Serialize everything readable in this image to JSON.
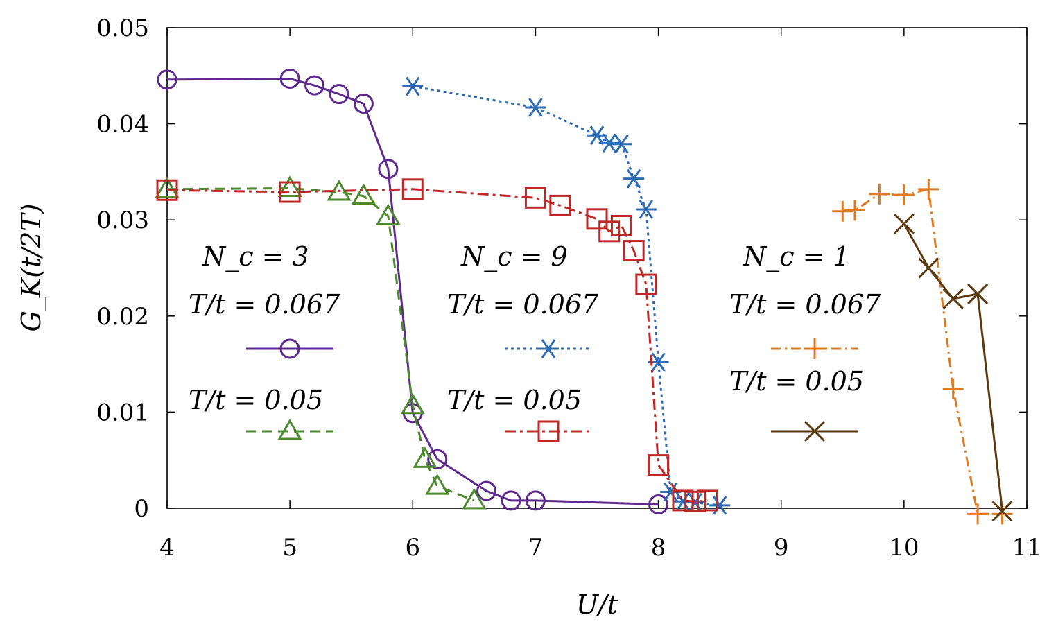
{
  "chart_data": {
    "type": "line",
    "title": "",
    "xlabel": "U/t",
    "ylabel": "G_K(t/2T)",
    "xlim": [
      4,
      11
    ],
    "ylim": [
      0,
      0.05
    ],
    "xticks": [
      4,
      5,
      6,
      7,
      8,
      9,
      10,
      11
    ],
    "yticks": [
      0,
      0.01,
      0.02,
      0.03,
      0.04,
      0.05
    ],
    "ytick_labels": [
      "0",
      "0.01",
      "0.02",
      "0.03",
      "0.04",
      "0.05"
    ],
    "legend_groups": [
      {
        "label": "N_c = 3",
        "entries": [
          {
            "label": "T/t = 0.067",
            "series": 0
          },
          {
            "label": "T/t = 0.05",
            "series": 1
          }
        ]
      },
      {
        "label": "N_c = 9",
        "entries": [
          {
            "label": "T/t = 0.067",
            "series": 2
          },
          {
            "label": "T/t = 0.05",
            "series": 3
          }
        ]
      },
      {
        "label": "N_c = 1",
        "entries": [
          {
            "label": "T/t = 0.067",
            "series": 4
          },
          {
            "label": "T/t = 0.05",
            "series": 5
          }
        ]
      }
    ],
    "series": [
      {
        "name": "Nc=3, T/t=0.067",
        "color": "#5e2a8e",
        "marker": "circle",
        "dash": "",
        "x": [
          4.0,
          5.0,
          5.2,
          5.4,
          5.6,
          5.8,
          6.0,
          6.2,
          6.6,
          6.8,
          7.0,
          8.0
        ],
        "y": [
          0.0446,
          0.0447,
          0.044,
          0.0431,
          0.0421,
          0.0353,
          0.0099,
          0.0051,
          0.0018,
          0.0008,
          0.0008,
          0.0004
        ]
      },
      {
        "name": "Nc=3, T/t=0.05",
        "color": "#4d8a2f",
        "marker": "triangle",
        "dash": "14,9",
        "x": [
          4.0,
          5.0,
          5.4,
          5.6,
          5.8,
          6.0,
          6.1,
          6.2,
          6.5
        ],
        "y": [
          0.0332,
          0.0333,
          0.0329,
          0.0325,
          0.0304,
          0.0107,
          0.0051,
          0.0023,
          0.0008
        ]
      },
      {
        "name": "Nc=9, T/t=0.067",
        "color": "#2e6bb5",
        "marker": "asterisk",
        "dash": "4,5",
        "x": [
          6.0,
          7.0,
          7.5,
          7.6,
          7.7,
          7.8,
          7.9,
          8.0,
          8.1,
          8.2,
          8.3,
          8.5
        ],
        "y": [
          0.0439,
          0.0417,
          0.0388,
          0.038,
          0.0379,
          0.0343,
          0.0311,
          0.0152,
          0.0017,
          0.0007,
          0.0006,
          0.0003
        ]
      },
      {
        "name": "Nc=9, T/t=0.05",
        "color": "#c02828",
        "marker": "square",
        "dash": "16,6,4,6",
        "x": [
          4.0,
          5.0,
          6.0,
          7.0,
          7.2,
          7.5,
          7.6,
          7.7,
          7.8,
          7.9,
          8.0,
          8.2,
          8.3,
          8.4
        ],
        "y": [
          0.0331,
          0.0329,
          0.0332,
          0.0323,
          0.0315,
          0.0301,
          0.0288,
          0.0294,
          0.0268,
          0.0233,
          0.0045,
          0.0008,
          0.0007,
          0.0008
        ]
      },
      {
        "name": "Nc=1, T/t=0.067",
        "color": "#e07a22",
        "marker": "plus",
        "dash": "14,6,3,6",
        "x": [
          9.5,
          9.6,
          9.8,
          10.0,
          10.2,
          10.4,
          10.6,
          10.8
        ],
        "y": [
          0.0309,
          0.031,
          0.0327,
          0.0326,
          0.0332,
          0.0124,
          -0.0006,
          -0.0006
        ]
      },
      {
        "name": "Nc=1, T/t=0.05",
        "color": "#5c3a10",
        "marker": "cross",
        "dash": "",
        "x": [
          10.0,
          10.2,
          10.4,
          10.6,
          10.8
        ],
        "y": [
          0.0296,
          0.025,
          0.0218,
          0.0223,
          -0.0003
        ]
      }
    ]
  }
}
